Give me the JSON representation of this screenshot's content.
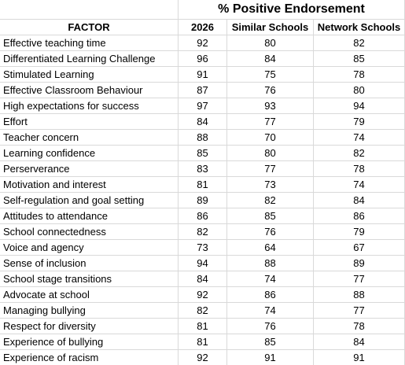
{
  "table": {
    "header_group": "% Positive Endorsement",
    "columns": [
      "FACTOR",
      "2026",
      "Similar Schools",
      "Network Schools"
    ],
    "rows": [
      [
        "Effective teaching time",
        92,
        80,
        82
      ],
      [
        "Differentiated Learning Challenge",
        96,
        84,
        85
      ],
      [
        "Stimulated Learning",
        91,
        75,
        78
      ],
      [
        "Effective Classroom Behaviour",
        87,
        76,
        80
      ],
      [
        "High expectations for success",
        97,
        93,
        94
      ],
      [
        "Effort",
        84,
        77,
        79
      ],
      [
        "Teacher concern",
        88,
        70,
        74
      ],
      [
        "Learning confidence",
        85,
        80,
        82
      ],
      [
        "Perserverance",
        83,
        77,
        78
      ],
      [
        "Motivation and interest",
        81,
        73,
        74
      ],
      [
        "Self-regulation and goal setting",
        89,
        82,
        84
      ],
      [
        "Attitudes to attendance",
        86,
        85,
        86
      ],
      [
        "School connectedness",
        82,
        76,
        79
      ],
      [
        "Voice and agency",
        73,
        64,
        67
      ],
      [
        "Sense of inclusion",
        94,
        88,
        89
      ],
      [
        "School stage transitions",
        84,
        74,
        77
      ],
      [
        "Advocate at school",
        92,
        86,
        88
      ],
      [
        "Managing bullying",
        82,
        74,
        77
      ],
      [
        "Respect for diversity",
        81,
        76,
        78
      ],
      [
        "Experience of bullying",
        81,
        85,
        84
      ],
      [
        "Experience of racism",
        92,
        91,
        91
      ]
    ]
  }
}
